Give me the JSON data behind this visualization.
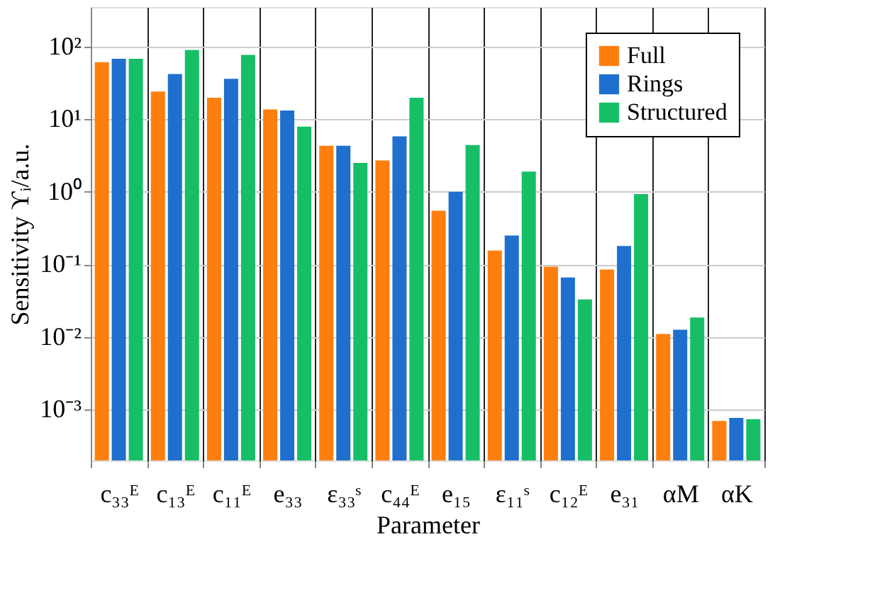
{
  "chart_data": {
    "type": "bar",
    "xlabel": "Parameter",
    "ylabel": "Sensitivity ϒᵢ/a.u.",
    "categories": [
      "c₃₃ᴱ",
      "c₁₃ᴱ",
      "c₁₁ᴱ",
      "e₃₃",
      "ε₃₃ˢ",
      "c₄₄ᴱ",
      "e₁₅",
      "ε₁₁ˢ",
      "c₁₂ᴱ",
      "e₃₁",
      "αM",
      "αK"
    ],
    "series": [
      {
        "name": "Full",
        "color": "#ff7f0e",
        "values": [
          61,
          24,
          19.7,
          13.6,
          4.3,
          2.7,
          0.55,
          0.155,
          0.093,
          0.085,
          0.011,
          0.0007
        ]
      },
      {
        "name": "Rings",
        "color": "#1f6fcf",
        "values": [
          68,
          42,
          36,
          13.2,
          4.3,
          5.8,
          1.0,
          0.25,
          0.066,
          0.18,
          0.0126,
          0.00077
        ]
      },
      {
        "name": "Structured",
        "color": "#16bf66",
        "values": [
          68,
          90,
          77,
          7.9,
          2.5,
          19.7,
          4.4,
          1.9,
          0.033,
          0.93,
          0.0186,
          0.00074
        ]
      }
    ],
    "log": true,
    "ylim": [
      0.0002,
      350
    ],
    "yticks": [
      {
        "value": 0.001,
        "label": "10⁻³"
      },
      {
        "value": 0.01,
        "label": "10⁻²"
      },
      {
        "value": 0.1,
        "label": "10⁻¹"
      },
      {
        "value": 1,
        "label": "10⁰"
      },
      {
        "value": 10,
        "label": "10¹"
      },
      {
        "value": 100,
        "label": "10²"
      }
    ],
    "grid": true,
    "legend": "top right"
  }
}
